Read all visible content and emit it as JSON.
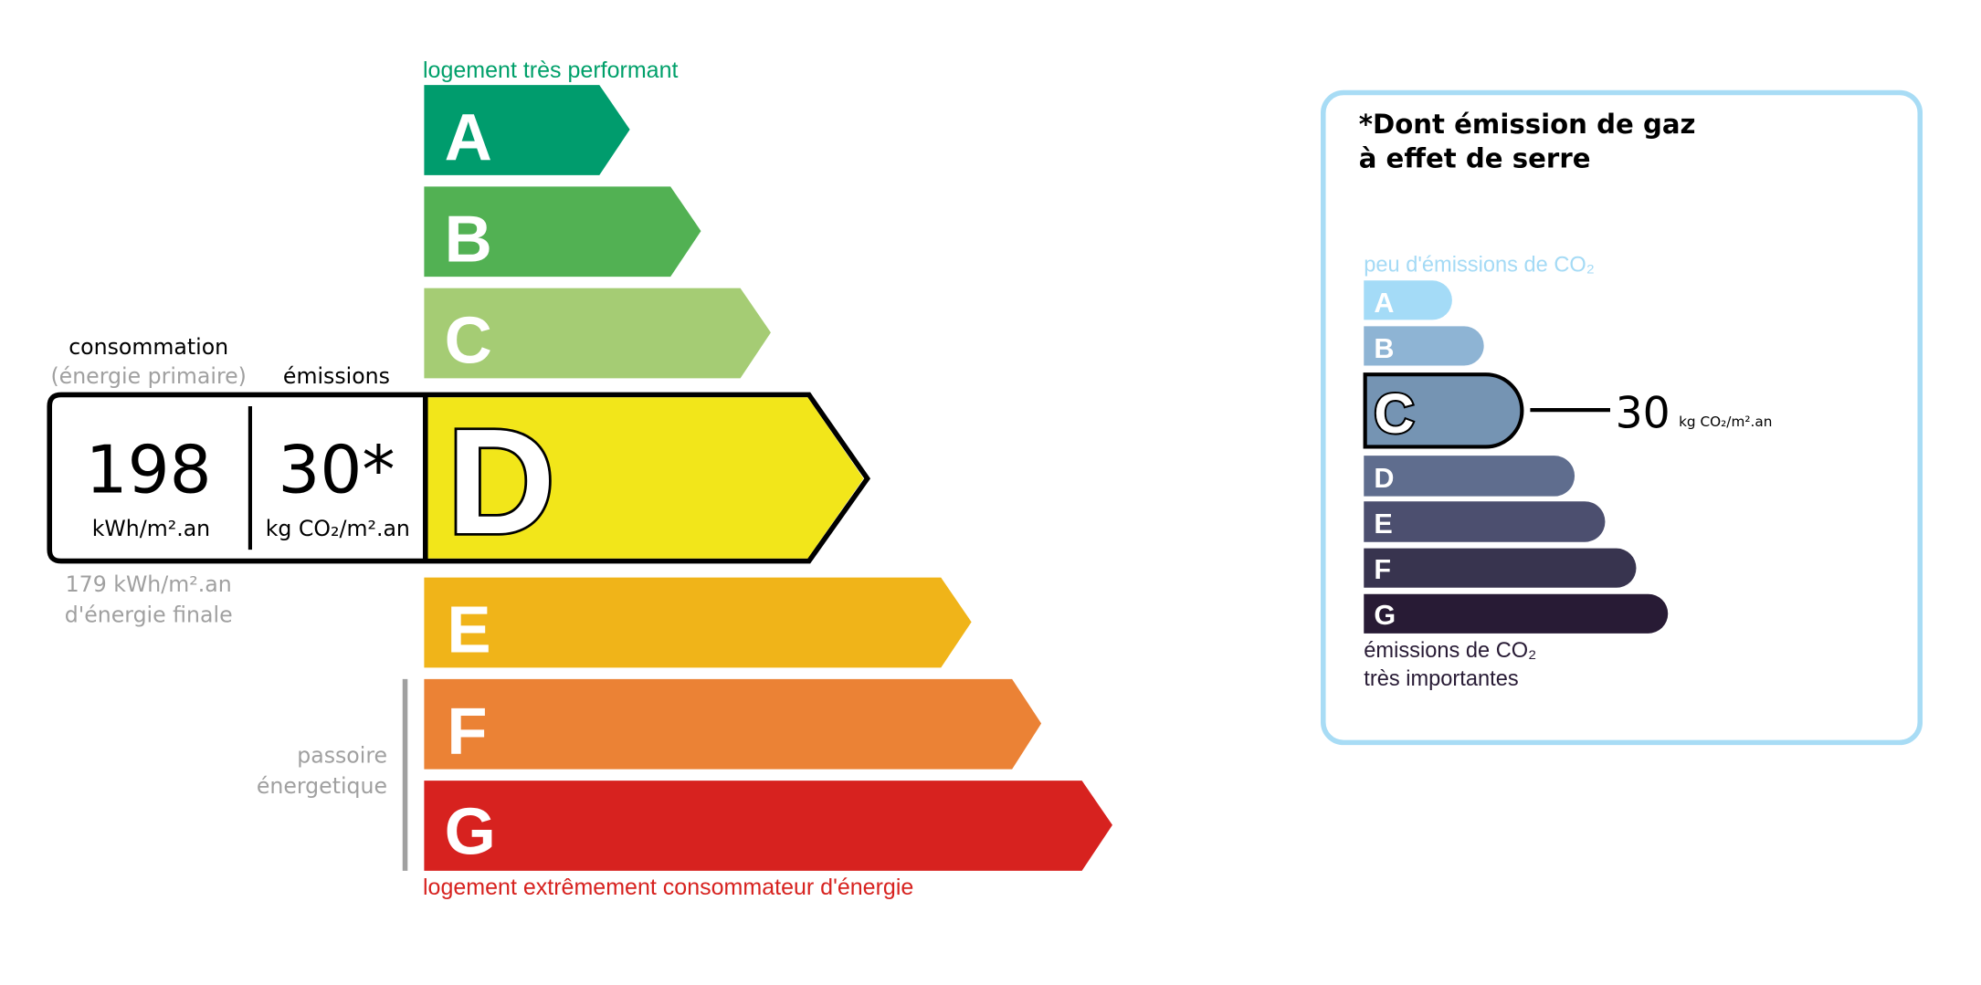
{
  "energy": {
    "top_label": "logement très performant",
    "bottom_label": "logement extrêmement consommateur d'énergie",
    "passoire_line1": "passoire",
    "passoire_line2": "énergetique",
    "classes": [
      {
        "letter": "A",
        "color": "#009c6d"
      },
      {
        "letter": "B",
        "color": "#52b153"
      },
      {
        "letter": "C",
        "color": "#a5cc74"
      },
      {
        "letter": "D",
        "color": "#f2e61a"
      },
      {
        "letter": "E",
        "color": "#f0b419"
      },
      {
        "letter": "F",
        "color": "#eb8235"
      },
      {
        "letter": "G",
        "color": "#d7221f"
      }
    ],
    "current_class": "D",
    "consumption_header": "consommation",
    "consumption_subheader": "(énergie primaire)",
    "emissions_header": "émissions",
    "consumption_value": "198",
    "consumption_unit": "kWh/m².an",
    "emissions_value": "30*",
    "emissions_unit": "kg CO₂/m².an",
    "final_energy_line1": "179 kWh/m².an",
    "final_energy_line2": "d'énergie finale",
    "colors": {
      "top_label": "#00a06a",
      "bottom_label": "#d7221f",
      "muted": "#a0a0a0"
    }
  },
  "ges": {
    "title_line1": "*Dont émission de gaz",
    "title_line2": "à effet de serre",
    "top_label": "peu d'émissions de CO₂",
    "bottom_label_line1": "émissions de CO₂",
    "bottom_label_line2": "très importantes",
    "classes": [
      {
        "letter": "A",
        "color": "#a4dbf7"
      },
      {
        "letter": "B",
        "color": "#8eb4d4"
      },
      {
        "letter": "C",
        "color": "#7594b3"
      },
      {
        "letter": "D",
        "color": "#5f6d8e"
      },
      {
        "letter": "E",
        "color": "#4c4f6f"
      },
      {
        "letter": "F",
        "color": "#38344f"
      },
      {
        "letter": "G",
        "color": "#281b35"
      }
    ],
    "current_class": "C",
    "value": "30",
    "unit": "kg CO₂/m².an",
    "colors": {
      "border": "#a8dcf5",
      "top_label": "#a4daf5",
      "bottom_label": "#281b35"
    }
  }
}
